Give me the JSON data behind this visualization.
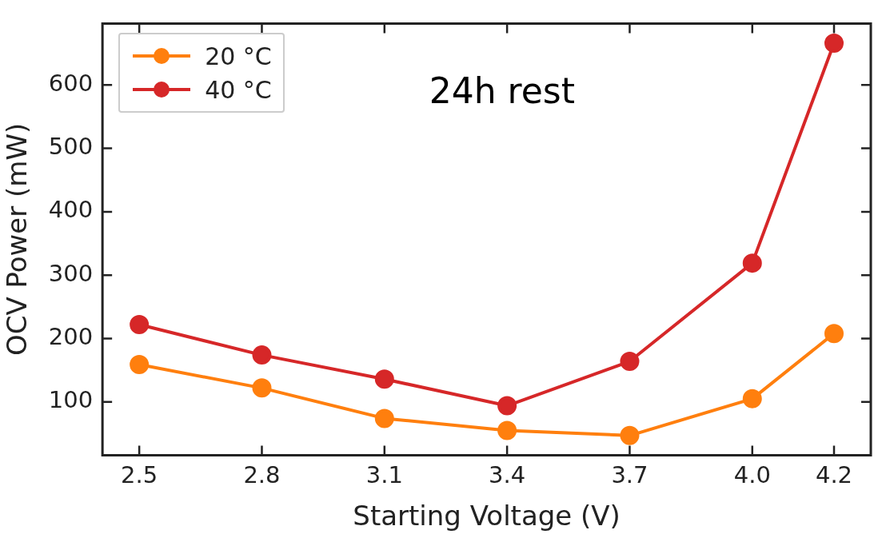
{
  "chart_data": {
    "type": "line",
    "xlabel": "Starting Voltage (V)",
    "ylabel": "OCV Power (mW)",
    "annotations": [
      "24h rest"
    ],
    "x": [
      2.5,
      2.8,
      3.1,
      3.4,
      3.7,
      4.0,
      4.2
    ],
    "series": [
      {
        "name": "20 °C",
        "color": "#ff7f0e",
        "values": [
          159,
          122,
          74,
          55,
          47,
          105,
          208
        ]
      },
      {
        "name": "40 °C",
        "color": "#d62728",
        "values": [
          222,
          174,
          136,
          94,
          164,
          319,
          666
        ]
      }
    ],
    "xlim": [
      2.41,
      4.29
    ],
    "xticks": [
      {
        "value": 2.5,
        "label": "2.5"
      },
      {
        "value": 2.8,
        "label": "2.8"
      },
      {
        "value": 3.1,
        "label": "3.1"
      },
      {
        "value": 3.4,
        "label": "3.4"
      },
      {
        "value": 3.7,
        "label": "3.7"
      },
      {
        "value": 4.0,
        "label": "4.0"
      },
      {
        "value": 4.2,
        "label": "4.2"
      }
    ],
    "ylim": [
      16,
      697
    ],
    "yticks": [
      100,
      200,
      300,
      400,
      500,
      600
    ],
    "grid": false,
    "legend": "top left",
    "marker": "circle",
    "line_style": "solid"
  }
}
